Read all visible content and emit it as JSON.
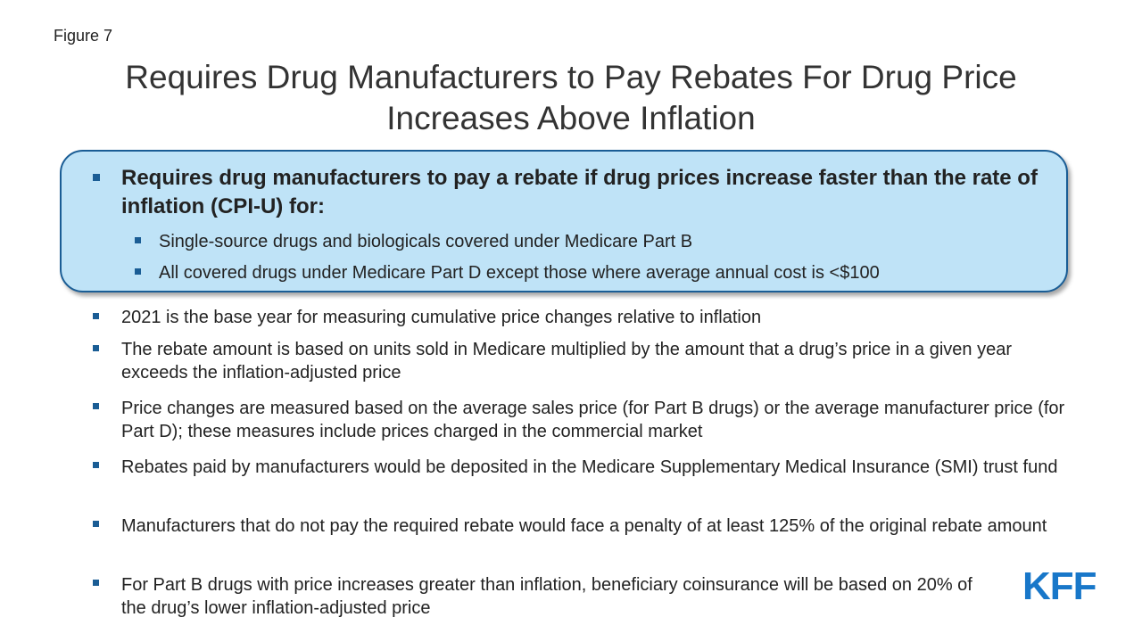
{
  "figure_label": "Figure 7",
  "title_line1": "Requires Drug Manufacturers to Pay Rebates For Drug Price",
  "title_line2": "Increases Above Inflation",
  "highlight": {
    "main": "Requires drug manufacturers to pay a rebate if drug prices increase faster than the rate of inflation (CPI-U) for:",
    "sub": [
      "Single-source drugs and biologicals covered under Medicare Part B",
      "All covered drugs under Medicare Part D except those where average annual cost is <$100"
    ]
  },
  "bullets": [
    "2021 is the base year for measuring cumulative price changes relative to inflation",
    "The rebate amount is based on units sold in Medicare multiplied by the amount that a drug’s price in a given year exceeds the inflation-adjusted price",
    "Price changes are measured based on the average sales price (for Part B drugs) or the average manufacturer price (for Part D); these measures include prices charged in the commercial market",
    "Rebates paid by manufacturers would be deposited in the Medicare Supplementary Medical Insurance (SMI) trust fund",
    "Manufacturers that do not pay the required rebate would face a penalty of at least 125% of the original rebate amount",
    "For Part B drugs with price increases greater than inflation, beneficiary coinsurance will be based on 20% of the drug’s lower inflation-adjusted price"
  ],
  "logo_text": "KFF",
  "colors": {
    "accent": "#1a5d95",
    "highlight_fill": "#bfe3f7",
    "logo": "#1877c9"
  }
}
